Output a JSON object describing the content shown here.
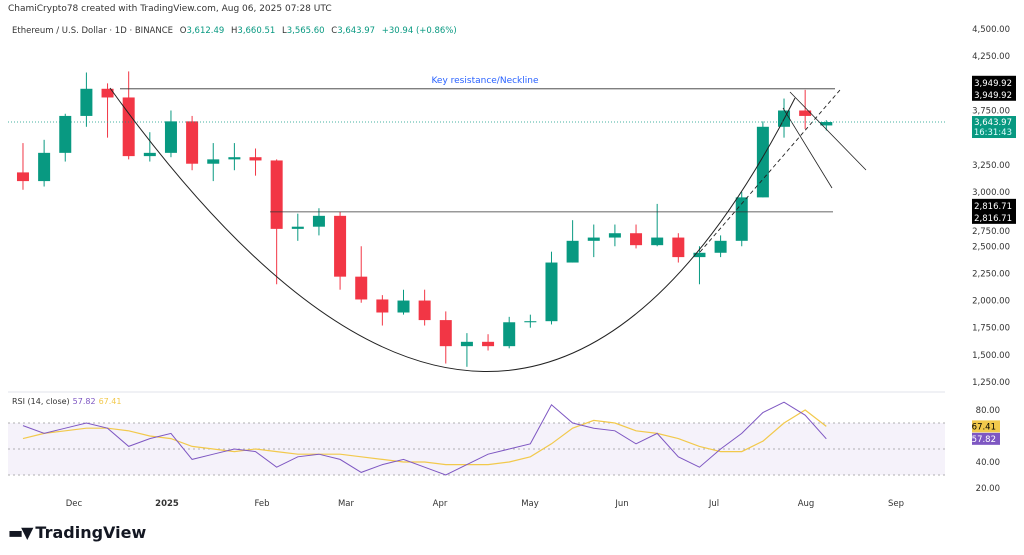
{
  "header": {
    "credit": "ChamiCrypto78 created with TradingView.com, Aug 06, 2025 07:28 UTC"
  },
  "legend": {
    "symbol": "Ethereum / U.S. Dollar · 1D · BINANCE",
    "o_label": "O",
    "o": "3,612.49",
    "h_label": "H",
    "h": "3,660.51",
    "l_label": "L",
    "l": "3,565.60",
    "c_label": "C",
    "c": "3,643.97",
    "change": "+30.94 (+0.86%)"
  },
  "rsi_legend": {
    "label": "RSI (14, close)",
    "rsi": "57.82",
    "ma": "67.41"
  },
  "footer": {
    "brand": "TradingView"
  },
  "colors": {
    "up": "#089981",
    "down": "#f23645",
    "rsi": "#7e57c2",
    "rsi_ma": "#f2c94c",
    "annotation": "#2962ff",
    "last_price": "#089981"
  },
  "chart_data": [
    {
      "type": "candlestick",
      "title": "Ethereum / U.S. Dollar · 1D · BINANCE",
      "ylim": [
        1250,
        4500
      ],
      "y_ticks": [
        "4,500.00",
        "4,250.00",
        "3,750.00",
        "3,250.00",
        "3,000.00",
        "2,750.00",
        "2,500.00",
        "2,250.00",
        "2,000.00",
        "1,750.00",
        "1,500.00",
        "1,250.00"
      ],
      "x_ticks": [
        "Dec",
        "2025",
        "Feb",
        "Mar",
        "Apr",
        "May",
        "Jun",
        "Jul",
        "Aug",
        "Sep"
      ],
      "ohlc": [
        [
          "2024-11-11",
          3180,
          3450,
          3020,
          3100
        ],
        [
          "2024-11-18",
          3100,
          3480,
          3050,
          3360
        ],
        [
          "2024-11-25",
          3360,
          3720,
          3280,
          3700
        ],
        [
          "2024-12-02",
          3700,
          4100,
          3600,
          3950
        ],
        [
          "2024-12-09",
          3950,
          4000,
          3500,
          3870
        ],
        [
          "2024-12-16",
          3870,
          4110,
          3300,
          3330
        ],
        [
          "2024-12-23",
          3330,
          3550,
          3280,
          3360
        ],
        [
          "2024-12-30",
          3360,
          3750,
          3320,
          3650
        ],
        [
          "2025-01-06",
          3650,
          3700,
          3200,
          3260
        ],
        [
          "2025-01-13",
          3260,
          3450,
          3100,
          3300
        ],
        [
          "2025-01-20",
          3300,
          3450,
          3200,
          3320
        ],
        [
          "2025-01-27",
          3320,
          3400,
          3150,
          3290
        ],
        [
          "2025-02-03",
          3290,
          3300,
          2150,
          2660
        ],
        [
          "2025-02-10",
          2660,
          2800,
          2550,
          2680
        ],
        [
          "2025-02-17",
          2680,
          2850,
          2600,
          2780
        ],
        [
          "2025-02-24",
          2780,
          2820,
          2100,
          2220
        ],
        [
          "2025-03-03",
          2220,
          2500,
          1980,
          2010
        ],
        [
          "2025-03-10",
          2010,
          2050,
          1770,
          1890
        ],
        [
          "2025-03-17",
          1890,
          2100,
          1870,
          2000
        ],
        [
          "2025-03-24",
          2000,
          2100,
          1770,
          1820
        ],
        [
          "2025-03-31",
          1820,
          1900,
          1420,
          1580
        ],
        [
          "2025-04-07",
          1580,
          1700,
          1390,
          1620
        ],
        [
          "2025-04-14",
          1620,
          1690,
          1540,
          1580
        ],
        [
          "2025-04-21",
          1580,
          1850,
          1560,
          1800
        ],
        [
          "2025-04-28",
          1800,
          1870,
          1750,
          1810
        ],
        [
          "2025-05-05",
          1810,
          2450,
          1780,
          2350
        ],
        [
          "2025-05-12",
          2350,
          2740,
          2350,
          2550
        ],
        [
          "2025-05-19",
          2550,
          2700,
          2400,
          2580
        ],
        [
          "2025-05-26",
          2580,
          2700,
          2500,
          2620
        ],
        [
          "2025-06-02",
          2620,
          2700,
          2480,
          2510
        ],
        [
          "2025-06-09",
          2510,
          2890,
          2500,
          2580
        ],
        [
          "2025-06-16",
          2580,
          2620,
          2350,
          2400
        ],
        [
          "2025-06-23",
          2400,
          2500,
          2150,
          2440
        ],
        [
          "2025-06-30",
          2440,
          2600,
          2400,
          2550
        ],
        [
          "2025-07-07",
          2550,
          3000,
          2500,
          2950
        ],
        [
          "2025-07-14",
          2950,
          3650,
          2950,
          3600
        ],
        [
          "2025-07-21",
          3600,
          3860,
          3500,
          3750
        ],
        [
          "2025-07-28",
          3750,
          3940,
          3580,
          3700
        ],
        [
          "2025-08-04",
          3612.49,
          3660.51,
          3565.6,
          3643.97
        ]
      ],
      "levels": [
        {
          "value": 3949.92,
          "label": "3,949.92"
        },
        {
          "value": 2816.71,
          "label": "2,816.71"
        }
      ],
      "last_price": {
        "value": 3643.97,
        "label": "3,643.97",
        "countdown": "16:31:43"
      },
      "annotations": [
        {
          "text": "Key resistance/Neckline"
        }
      ]
    },
    {
      "type": "line",
      "title": "RSI (14, close)",
      "ylim": [
        20,
        90
      ],
      "y_ticks": [
        "80.00",
        "40.00",
        "20.00"
      ],
      "bands": [
        30,
        70
      ],
      "series": [
        {
          "name": "RSI",
          "values": [
            68,
            62,
            66,
            70,
            66,
            52,
            58,
            62,
            42,
            46,
            50,
            48,
            36,
            44,
            46,
            42,
            32,
            38,
            42,
            36,
            30,
            38,
            46,
            50,
            54,
            84,
            70,
            66,
            64,
            54,
            62,
            44,
            36,
            50,
            62,
            78,
            86,
            76,
            57.82
          ],
          "last_label": "57.82"
        },
        {
          "name": "RSI-based MA",
          "values": [
            58,
            62,
            64,
            66,
            66,
            64,
            60,
            58,
            52,
            50,
            48,
            50,
            48,
            46,
            46,
            46,
            44,
            42,
            40,
            40,
            38,
            38,
            38,
            40,
            44,
            54,
            66,
            72,
            70,
            64,
            62,
            58,
            52,
            48,
            48,
            56,
            70,
            80,
            67.41
          ],
          "last_label": "67.41"
        }
      ]
    }
  ]
}
